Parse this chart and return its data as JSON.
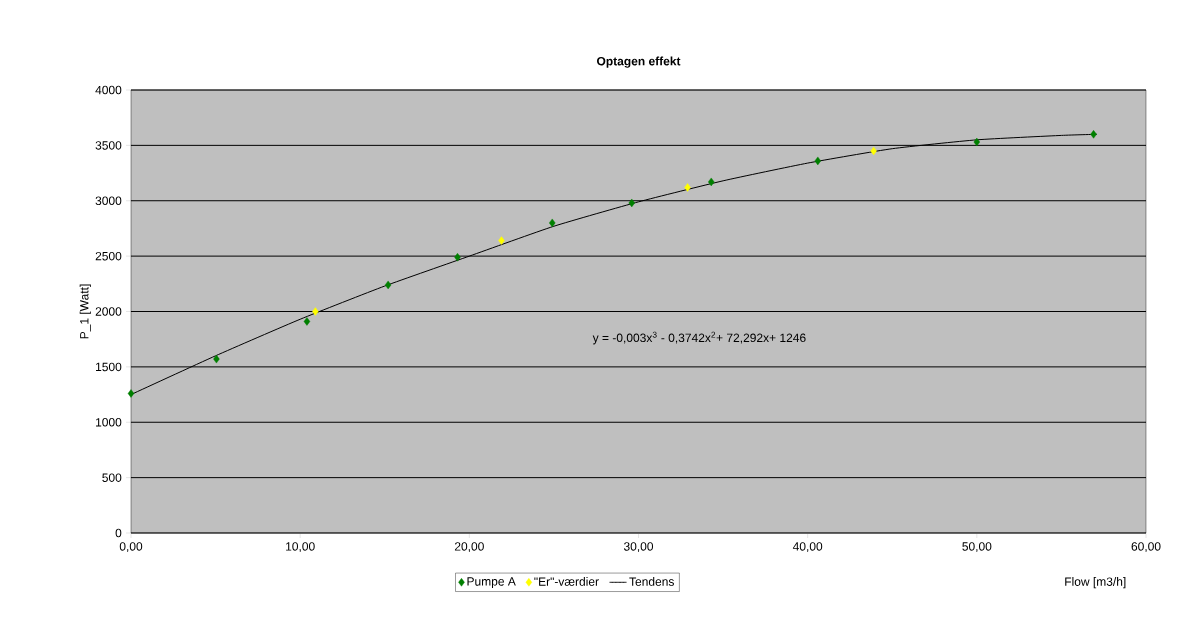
{
  "chart_data": {
    "type": "scatter",
    "title": "Optagen effekt",
    "xlabel": "Flow [m3/h]",
    "ylabel": "P_1 [Watt]",
    "xlim": [
      0,
      60
    ],
    "ylim": [
      0,
      4000
    ],
    "xticks": [
      {
        "value": 0,
        "label": "0,00"
      },
      {
        "value": 10,
        "label": "10,00"
      },
      {
        "value": 20,
        "label": "20,00"
      },
      {
        "value": 30,
        "label": "30,00"
      },
      {
        "value": 40,
        "label": "40,00"
      },
      {
        "value": 50,
        "label": "50,00"
      },
      {
        "value": 60,
        "label": "60,00"
      }
    ],
    "yticks": [
      0,
      500,
      1000,
      1500,
      2000,
      2500,
      3000,
      3500,
      4000
    ],
    "grid": "y",
    "legend": "bottom",
    "marker": "diamond",
    "annotations": [
      "y = -0,003x$^{3}$ - 0,3742x$^{2}$+ 72,292x+ 1246"
    ],
    "series": [
      {
        "name": "Pumpe A",
        "color": "#007f00",
        "x": [
          0,
          5.05,
          10.4,
          15.2,
          19.3,
          24.9,
          29.6,
          34.3,
          40.6,
          50.0,
          56.9
        ],
        "values": [
          1260,
          1570,
          1910,
          2240,
          2490,
          2800,
          2980,
          3170,
          3360,
          3530,
          3600
        ]
      },
      {
        "name": "\"Er\"-værdier",
        "color": "#ffff00",
        "x": [
          10.9,
          21.9,
          32.9,
          43.9
        ],
        "values": [
          2000,
          2640,
          3120,
          3450
        ]
      },
      {
        "name": "Tendens",
        "type": "line",
        "marker": "none",
        "color": "#000000",
        "x": [
          0,
          5,
          10,
          15,
          20,
          25,
          30,
          35,
          40,
          45,
          50,
          55,
          57.1
        ],
        "values": [
          1250,
          1600,
          1930,
          2230,
          2500,
          2770,
          2990,
          3180,
          3340,
          3470,
          3550,
          3590,
          3600
        ]
      }
    ]
  }
}
